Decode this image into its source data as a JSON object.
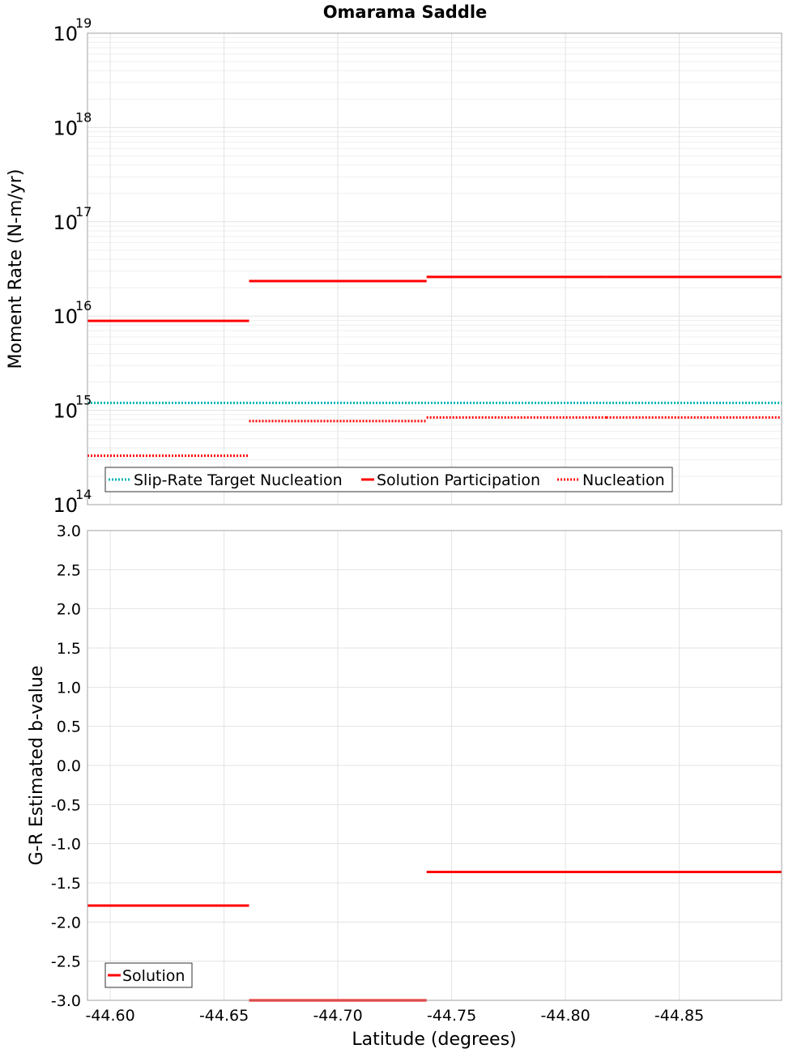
{
  "chart_data": [
    {
      "type": "line",
      "title": "Omarama Saddle",
      "ylabel": "Moment Rate (N-m/yr)",
      "yscale": "log",
      "ylim": [
        100000000000000.0,
        1e+19
      ],
      "xlim": [
        -44.59,
        -44.895
      ],
      "x_reversed": true,
      "grid": true,
      "y_ticks": [
        {
          "base": "10",
          "exp": "14",
          "value": 100000000000000.0
        },
        {
          "base": "10",
          "exp": "15",
          "value": 1000000000000000.0
        },
        {
          "base": "10",
          "exp": "16",
          "value": 1e+16
        },
        {
          "base": "10",
          "exp": "17",
          "value": 1e+17
        },
        {
          "base": "10",
          "exp": "18",
          "value": 1e+18
        },
        {
          "base": "10",
          "exp": "19",
          "value": 1e+19
        }
      ],
      "legend": {
        "placement": "bottom-left",
        "entries": [
          "Slip-Rate Target Nucleation",
          "Solution Participation",
          "Nucleation"
        ]
      },
      "series": [
        {
          "name": "Slip-Rate Target Nucleation",
          "color": "#00b4b4",
          "style": "dotted",
          "segments": [
            {
              "x": [
                -44.59,
                -44.895
              ],
              "y": 1200000000000000.0
            }
          ]
        },
        {
          "name": "Solution Participation",
          "color": "#ff0000",
          "style": "solid",
          "segments": [
            {
              "x": [
                -44.59,
                -44.661
              ],
              "y": 8900000000000000.0
            },
            {
              "x": [
                -44.661,
                -44.739
              ],
              "y": 2.35e+16
            },
            {
              "x": [
                -44.739,
                -44.818
              ],
              "y": 2.6e+16
            },
            {
              "x": [
                -44.818,
                -44.895
              ],
              "y": 2.6e+16
            }
          ]
        },
        {
          "name": "Nucleation",
          "color": "#ff0000",
          "style": "dotted",
          "segments": [
            {
              "x": [
                -44.59,
                -44.661
              ],
              "y": 330000000000000.0
            },
            {
              "x": [
                -44.661,
                -44.739
              ],
              "y": 770000000000000.0
            },
            {
              "x": [
                -44.739,
                -44.818
              ],
              "y": 840000000000000.0
            },
            {
              "x": [
                -44.818,
                -44.895
              ],
              "y": 840000000000000.0
            }
          ]
        }
      ]
    },
    {
      "type": "line",
      "xlabel": "Latitude (degrees)",
      "ylabel": "G-R Estimated b-value",
      "ylim": [
        -3.0,
        3.0
      ],
      "xlim": [
        -44.59,
        -44.895
      ],
      "x_reversed": true,
      "grid": true,
      "y_ticks": [
        "3.0",
        "2.5",
        "2.0",
        "1.5",
        "1.0",
        "0.5",
        "0.0",
        "-0.5",
        "-1.0",
        "-1.5",
        "-2.0",
        "-2.5",
        "-3.0"
      ],
      "x_ticks": [
        "-44.60",
        "-44.65",
        "-44.70",
        "-44.75",
        "-44.80",
        "-44.85"
      ],
      "legend": {
        "placement": "bottom-left",
        "entries": [
          "Solution"
        ]
      },
      "series": [
        {
          "name": "Solution",
          "color": "#ff0000",
          "style": "solid",
          "segments": [
            {
              "x": [
                -44.59,
                -44.661
              ],
              "y": -1.79
            },
            {
              "x": [
                -44.661,
                -44.739
              ],
              "y": -3.0
            },
            {
              "x": [
                -44.739,
                -44.818
              ],
              "y": -1.36
            },
            {
              "x": [
                -44.818,
                -44.895
              ],
              "y": -1.36
            }
          ]
        }
      ]
    }
  ]
}
